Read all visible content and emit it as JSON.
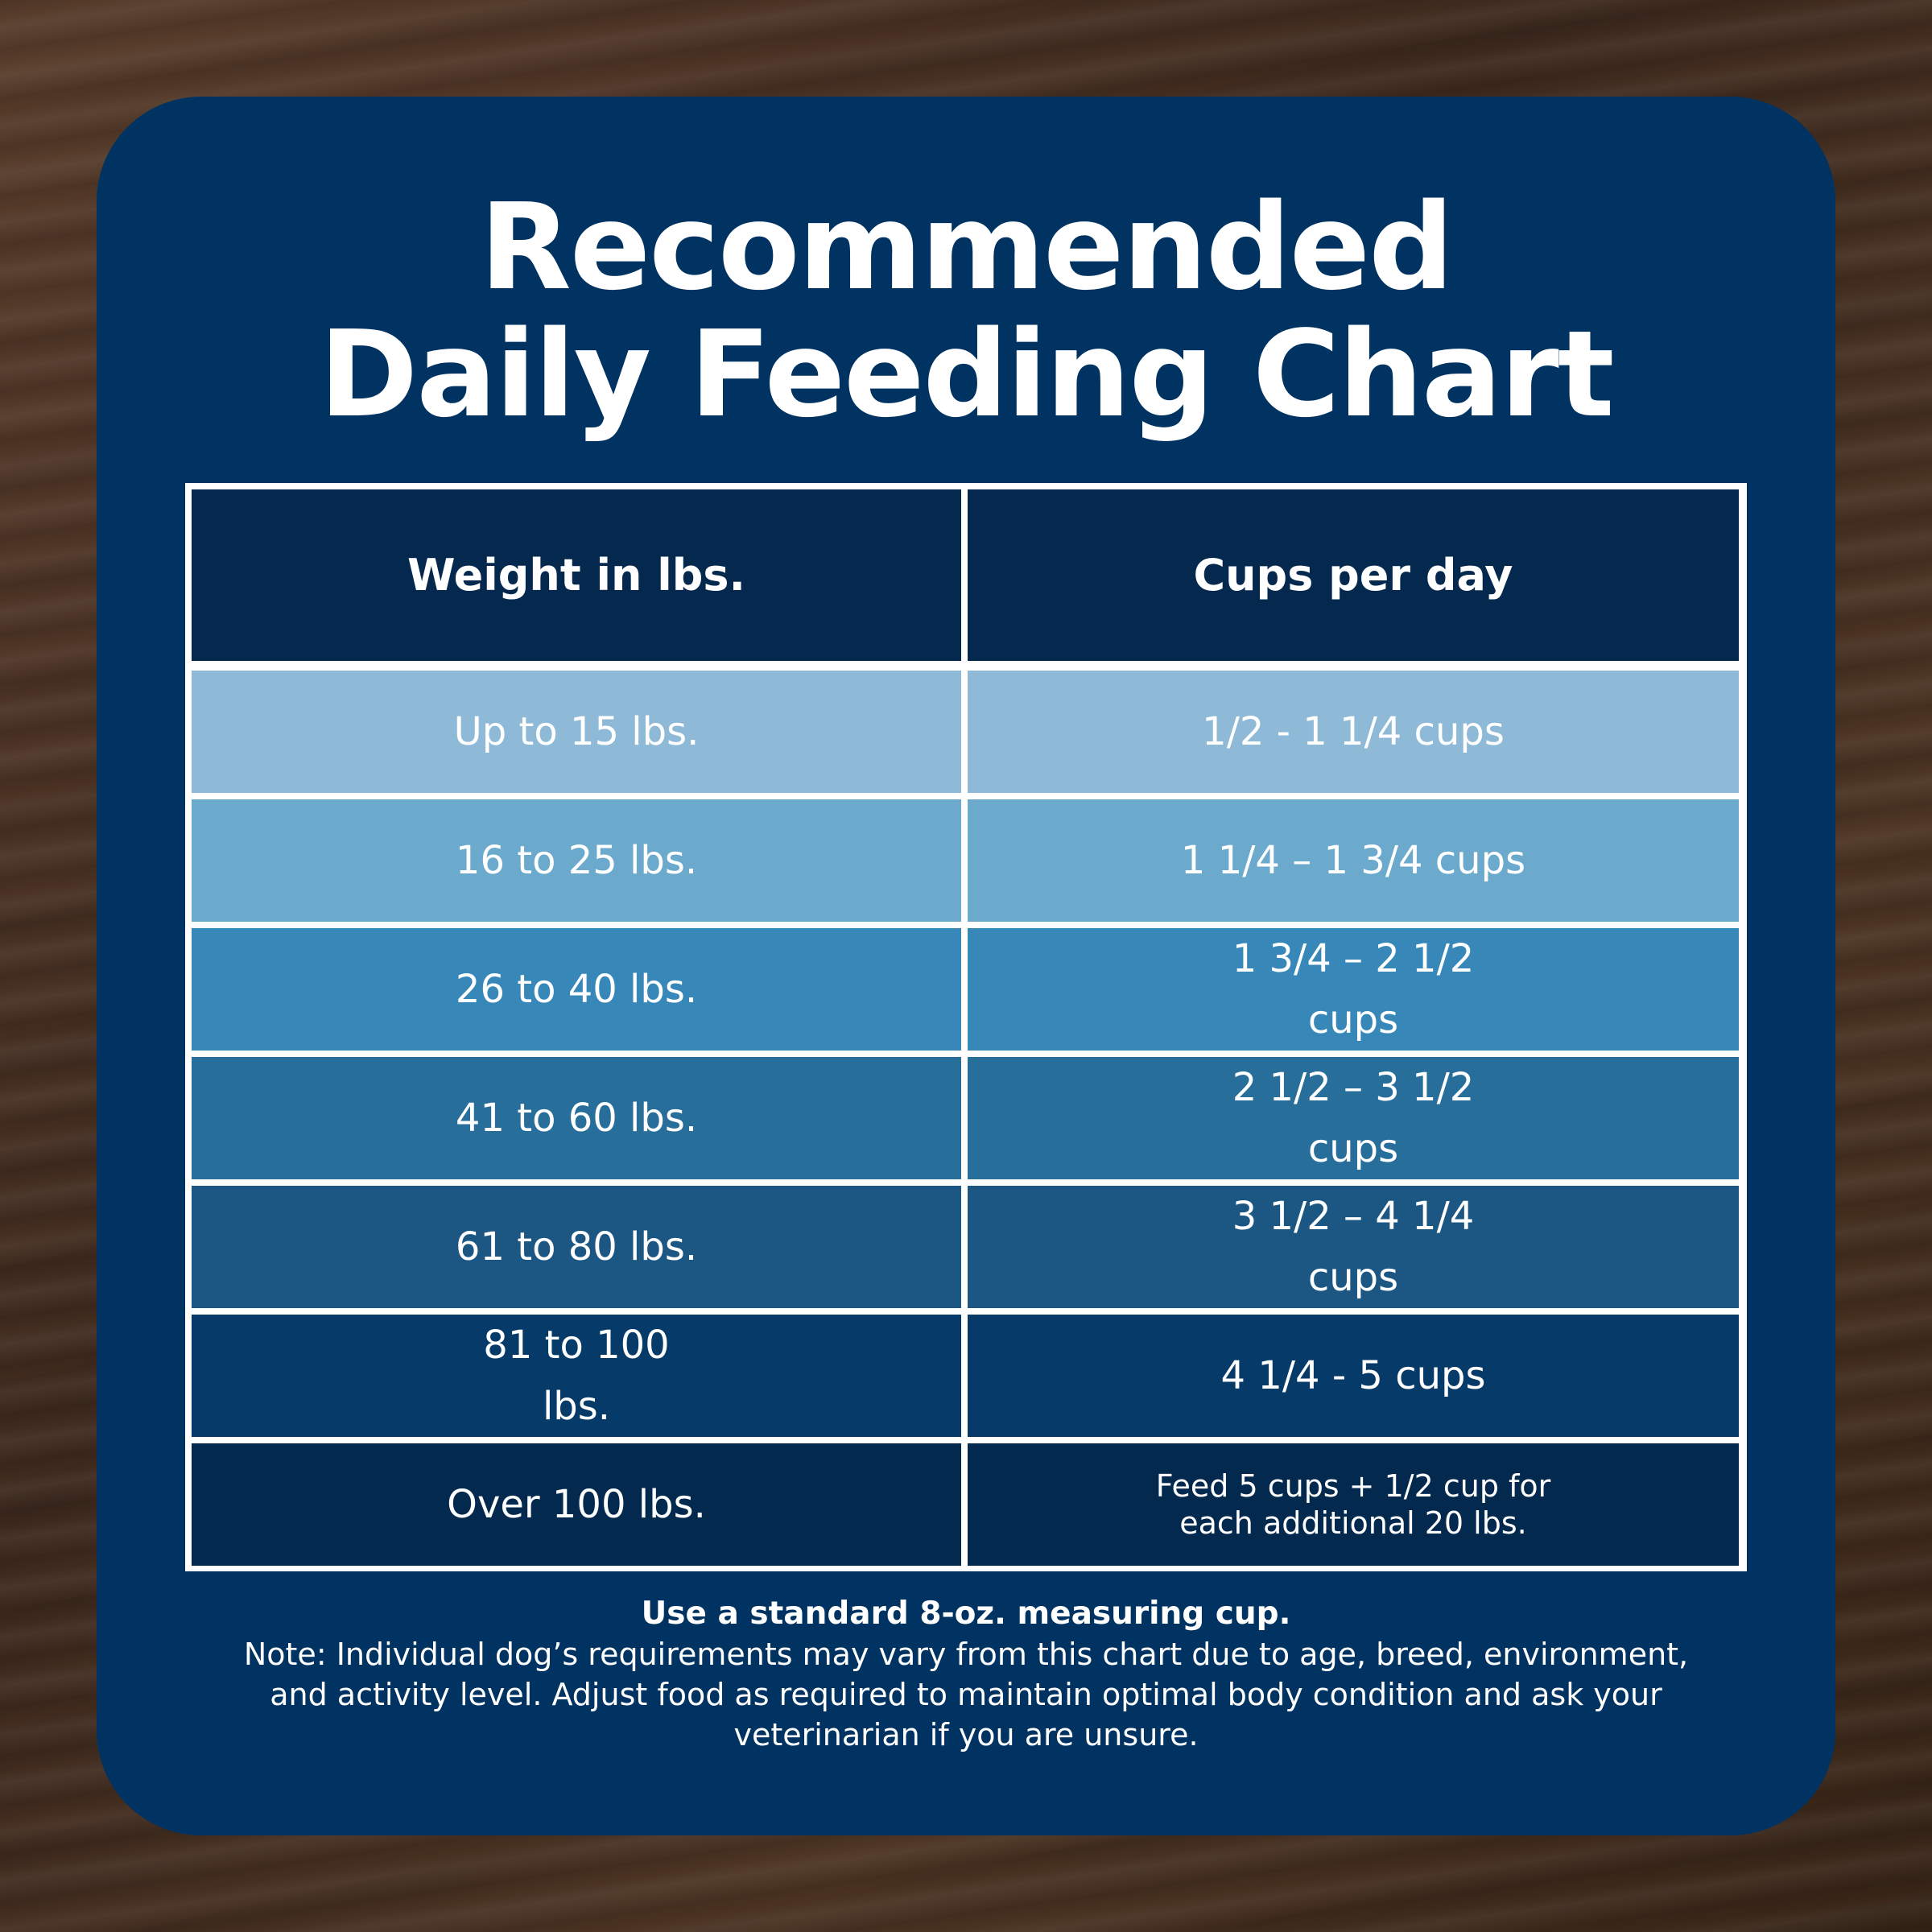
{
  "title_line1": "Recommended",
  "title_line2": "Daily Feeding Chart",
  "colors": {
    "card": "#003362",
    "header_row": "#05284f",
    "row_colors": [
      "#8ebad8",
      "#6caacd",
      "#3788b9",
      "#286e9b",
      "#1c5783",
      "#063a69",
      "#04294f"
    ]
  },
  "chart_data": {
    "type": "table",
    "columns": [
      "Weight in lbs.",
      "Cups per day"
    ],
    "rows": [
      {
        "weight": "Up to 15 lbs.",
        "cups": "1/2 - 1 1/4 cups"
      },
      {
        "weight": "16 to 25 lbs.",
        "cups": "1 1/4 – 1 3/4 cups"
      },
      {
        "weight": "26 to 40 lbs.",
        "cups": "1 3/4 – 2 1/2\ncups"
      },
      {
        "weight": "41 to 60 lbs.",
        "cups": "2 1/2 – 3 1/2\ncups"
      },
      {
        "weight": "61 to 80 lbs.",
        "cups": "3 1/2 – 4 1/4\ncups"
      },
      {
        "weight": "81 to 100\nlbs.",
        "cups": "4 1/4 - 5 cups"
      },
      {
        "weight": "Over 100 lbs.",
        "cups": "Feed 5 cups + 1/2 cup for\neach additional 20 lbs."
      }
    ]
  },
  "footer": {
    "bold_line": "Use a standard 8-oz. measuring cup.",
    "note": "Note: Individual dog’s requirements may vary from this chart due to age, breed, environment,\nand activity level. Adjust food as required to maintain optimal body condition and ask your\nveterinarian if you are unsure."
  }
}
